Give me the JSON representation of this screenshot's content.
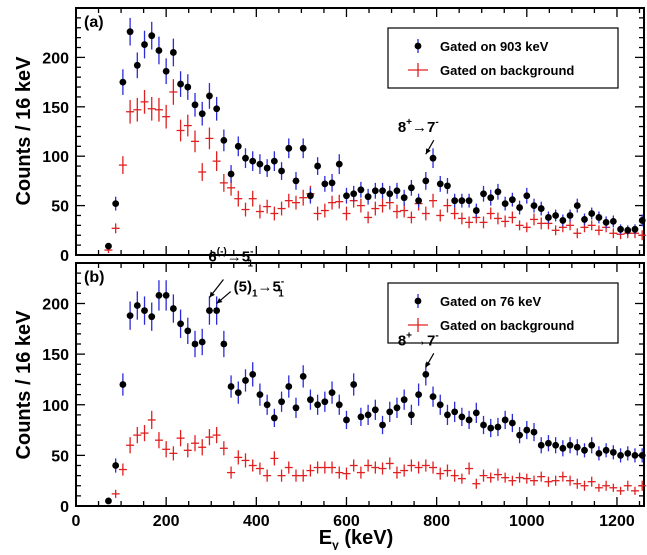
{
  "chart_data": {
    "type": "scatter",
    "x_label": "E",
    "x_label_sub": "γ",
    "x_label_unit": " (keV)",
    "y_label": "Counts / 16 keV",
    "xlim": [
      0,
      1260
    ],
    "x_ticks": [
      0,
      200,
      400,
      600,
      800,
      1000,
      1200
    ],
    "panels": [
      {
        "label": "(a)",
        "ylim": [
          0,
          250
        ],
        "y_ticks": [
          0,
          50,
          100,
          150,
          200
        ],
        "legend": [
          "Gated on 903 keV",
          "Gated on background"
        ],
        "series": [
          {
            "name": "Gated on 903 keV",
            "color": "#000000",
            "err_color": "#2b2bd9",
            "marker": "circle",
            "x": [
              72,
              88,
              104,
              120,
              136,
              152,
              168,
              184,
              200,
              216,
              232,
              248,
              264,
              280,
              296,
              312,
              328,
              344,
              360,
              376,
              392,
              408,
              424,
              440,
              456,
              472,
              488,
              504,
              520,
              536,
              552,
              568,
              584,
              600,
              616,
              632,
              648,
              664,
              680,
              696,
              712,
              728,
              744,
              760,
              776,
              792,
              808,
              824,
              840,
              856,
              872,
              888,
              904,
              920,
              936,
              952,
              968,
              984,
              1000,
              1016,
              1032,
              1048,
              1064,
              1080,
              1096,
              1112,
              1128,
              1144,
              1160,
              1176,
              1192,
              1208,
              1224,
              1240,
              1256
            ],
            "y": [
              9,
              52,
              175,
              226,
              192,
              213,
              222,
              207,
              186,
              205,
              173,
              170,
              152,
              143,
              161,
              148,
              116,
              82,
              110,
              98,
              95,
              92,
              88,
              95,
              85,
              108,
              75,
              108,
              60,
              90,
              72,
              73,
              92,
              60,
              62,
              66,
              59,
              65,
              65,
              62,
              65,
              58,
              68,
              55,
              75,
              98,
              72,
              70,
              55,
              55,
              55,
              45,
              62,
              58,
              64,
              52,
              56,
              48,
              60,
              50,
              47,
              38,
              40,
              35,
              40,
              50,
              36,
              42,
              38,
              33,
              34,
              26,
              25,
              26,
              35
            ],
            "err": [
              3,
              7,
              13,
              14,
              13,
              14,
              14,
              14,
              13,
              14,
              13,
              13,
              12,
              12,
              13,
              12,
              11,
              9,
              10,
              10,
              10,
              10,
              9,
              10,
              9,
              10,
              9,
              10,
              8,
              9,
              8,
              9,
              10,
              8,
              8,
              8,
              8,
              8,
              8,
              8,
              8,
              8,
              8,
              7,
              9,
              10,
              8,
              8,
              7,
              7,
              7,
              7,
              8,
              8,
              8,
              7,
              7,
              7,
              8,
              7,
              7,
              6,
              6,
              6,
              6,
              7,
              6,
              6,
              6,
              6,
              6,
              5,
              5,
              5,
              6
            ]
          },
          {
            "name": "Gated on background",
            "color": "#e02020",
            "err_color": "#e02020",
            "marker": "cross",
            "x": [
              72,
              88,
              104,
              120,
              136,
              152,
              168,
              184,
              200,
              216,
              232,
              248,
              264,
              280,
              296,
              312,
              328,
              344,
              360,
              376,
              392,
              408,
              424,
              440,
              456,
              472,
              488,
              504,
              520,
              536,
              552,
              568,
              584,
              600,
              616,
              632,
              648,
              664,
              680,
              696,
              712,
              728,
              744,
              760,
              776,
              792,
              808,
              824,
              840,
              856,
              872,
              888,
              904,
              920,
              936,
              952,
              968,
              984,
              1000,
              1016,
              1032,
              1048,
              1064,
              1080,
              1096,
              1112,
              1128,
              1144,
              1160,
              1176,
              1192,
              1208,
              1224,
              1240,
              1256
            ],
            "y": [
              5,
              27,
              91,
              145,
              147,
              155,
              148,
              147,
              140,
              165,
              126,
              131,
              115,
              84,
              118,
              95,
              73,
              68,
              57,
              46,
              57,
              44,
              49,
              42,
              47,
              55,
              53,
              58,
              62,
              42,
              45,
              53,
              54,
              42,
              55,
              50,
              38,
              47,
              50,
              53,
              44,
              45,
              38,
              52,
              42,
              55,
              40,
              50,
              42,
              37,
              33,
              38,
              33,
              42,
              37,
              34,
              38,
              30,
              28,
              36,
              32,
              32,
              25,
              28,
              30,
              22,
              28,
              30,
              25,
              28,
              22,
              21,
              22,
              22,
              20
            ],
            "err": [
              3,
              5,
              9,
              12,
              12,
              12,
              12,
              12,
              12,
              13,
              11,
              11,
              11,
              9,
              11,
              10,
              9,
              8,
              8,
              7,
              8,
              7,
              7,
              7,
              7,
              7,
              7,
              8,
              8,
              7,
              7,
              7,
              7,
              7,
              7,
              7,
              6,
              7,
              7,
              7,
              7,
              7,
              6,
              7,
              7,
              7,
              6,
              7,
              6,
              6,
              6,
              6,
              6,
              6,
              6,
              6,
              6,
              5,
              5,
              6,
              6,
              6,
              5,
              5,
              5,
              5,
              5,
              5,
              5,
              5,
              5,
              5,
              5,
              5,
              5
            ]
          }
        ],
        "annotations": [
          {
            "text": "8",
            "sup": "+",
            "arrow": "→",
            "text2": "7",
            "sup2": "-",
            "target_x": 776,
            "target_y": 98
          }
        ]
      },
      {
        "label": "(b)",
        "ylim": [
          0,
          240
        ],
        "y_ticks": [
          0,
          50,
          100,
          150,
          200
        ],
        "legend": [
          "Gated on 76 keV",
          "Gated on background"
        ],
        "series": [
          {
            "name": "Gated on 76 keV",
            "color": "#000000",
            "err_color": "#2b2bd9",
            "marker": "circle",
            "x": [
              72,
              88,
              104,
              120,
              136,
              152,
              168,
              184,
              200,
              216,
              232,
              248,
              264,
              280,
              296,
              312,
              328,
              344,
              360,
              376,
              392,
              408,
              424,
              440,
              456,
              472,
              488,
              504,
              520,
              536,
              552,
              568,
              584,
              600,
              616,
              632,
              648,
              664,
              680,
              696,
              712,
              728,
              744,
              760,
              776,
              792,
              808,
              824,
              840,
              856,
              872,
              888,
              904,
              920,
              936,
              952,
              968,
              984,
              1000,
              1016,
              1032,
              1048,
              1064,
              1080,
              1096,
              1112,
              1128,
              1144,
              1160,
              1176,
              1192,
              1208,
              1224,
              1240,
              1256
            ],
            "y": [
              5,
              40,
              120,
              188,
              198,
              193,
              187,
              208,
              208,
              195,
              180,
              173,
              160,
              162,
              193,
              193,
              160,
              118,
              112,
              124,
              130,
              110,
              100,
              87,
              103,
              118,
              97,
              128,
              105,
              100,
              103,
              112,
              100,
              85,
              120,
              88,
              90,
              95,
              80,
              93,
              97,
              105,
              90,
              110,
              130,
              108,
              100,
              90,
              93,
              88,
              85,
              92,
              80,
              77,
              78,
              85,
              82,
              70,
              75,
              73,
              60,
              62,
              60,
              57,
              60,
              58,
              55,
              60,
              52,
              55,
              53,
              50,
              52,
              50,
              50
            ],
            "err": [
              3,
              7,
              11,
              14,
              14,
              14,
              14,
              15,
              15,
              14,
              14,
              13,
              13,
              13,
              14,
              14,
              13,
              11,
              11,
              11,
              12,
              11,
              10,
              9,
              10,
              11,
              10,
              11,
              10,
              10,
              10,
              11,
              10,
              9,
              11,
              9,
              10,
              10,
              9,
              10,
              10,
              10,
              10,
              11,
              11,
              10,
              10,
              10,
              10,
              9,
              9,
              10,
              9,
              9,
              9,
              9,
              9,
              8,
              9,
              9,
              8,
              8,
              8,
              8,
              8,
              8,
              7,
              8,
              7,
              7,
              7,
              7,
              7,
              7,
              7
            ]
          },
          {
            "name": "Gated on background",
            "color": "#e02020",
            "err_color": "#e02020",
            "marker": "cross",
            "x": [
              88,
              104,
              120,
              136,
              152,
              168,
              184,
              200,
              216,
              232,
              248,
              264,
              280,
              296,
              312,
              328,
              344,
              360,
              376,
              392,
              408,
              424,
              440,
              456,
              472,
              488,
              504,
              520,
              536,
              552,
              568,
              584,
              600,
              616,
              632,
              648,
              664,
              680,
              696,
              712,
              728,
              744,
              760,
              776,
              792,
              808,
              824,
              840,
              856,
              872,
              888,
              904,
              920,
              936,
              952,
              968,
              984,
              1000,
              1016,
              1032,
              1048,
              1064,
              1080,
              1096,
              1112,
              1128,
              1144,
              1160,
              1176,
              1192,
              1208,
              1224,
              1240,
              1256
            ],
            "y": [
              12,
              36,
              60,
              70,
              72,
              85,
              65,
              56,
              52,
              67,
              55,
              62,
              58,
              68,
              70,
              57,
              33,
              48,
              45,
              40,
              37,
              30,
              47,
              30,
              38,
              30,
              30,
              35,
              38,
              38,
              38,
              33,
              32,
              40,
              33,
              40,
              38,
              37,
              42,
              33,
              35,
              40,
              38,
              40,
              38,
              32,
              35,
              30,
              27,
              37,
              22,
              30,
              28,
              31,
              28,
              25,
              28,
              27,
              25,
              29,
              24,
              25,
              29,
              25,
              22,
              20,
              24,
              18,
              20,
              18,
              15,
              20,
              15,
              20
            ],
            "err": [
              4,
              6,
              8,
              8,
              8,
              9,
              8,
              8,
              7,
              8,
              7,
              8,
              8,
              8,
              8,
              7,
              6,
              7,
              7,
              6,
              6,
              6,
              7,
              6,
              6,
              6,
              6,
              6,
              6,
              6,
              6,
              6,
              6,
              6,
              6,
              6,
              6,
              6,
              6,
              6,
              6,
              6,
              6,
              6,
              6,
              6,
              6,
              6,
              5,
              6,
              5,
              6,
              5,
              6,
              5,
              5,
              5,
              5,
              5,
              5,
              5,
              5,
              5,
              5,
              5,
              5,
              5,
              4,
              5,
              4,
              4,
              5,
              4,
              5
            ]
          }
        ],
        "annotations": [
          {
            "text": "6",
            "sup": "(-)",
            "arrow": "→",
            "text2": "5",
            "sup2": "-",
            "sub2": "1",
            "target_x": 296,
            "target_y": 202
          },
          {
            "text": "(5)",
            "sub": "1",
            "arrow": "→",
            "text2": "5",
            "sup2": "-",
            "sub2": "1",
            "target_x": 312,
            "target_y": 196
          },
          {
            "text": "8",
            "sup": "+",
            "arrow": "→",
            "text2": "7",
            "sup2": "-",
            "target_x": 776,
            "target_y": 133
          }
        ]
      }
    ]
  }
}
